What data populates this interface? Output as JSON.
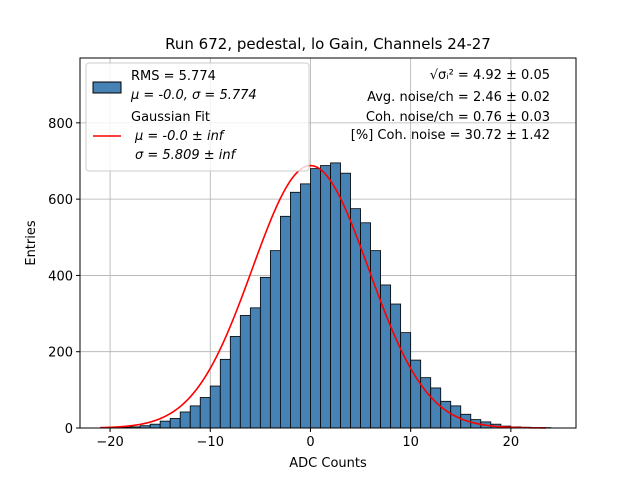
{
  "chart_data": {
    "type": "bar",
    "title": "Run 672, pedestal, lo Gain, Channels 24-27",
    "xlabel": "ADC Counts",
    "ylabel": "Entries",
    "xlim": [
      -23,
      26.5
    ],
    "ylim": [
      0,
      970
    ],
    "xticks": [
      -20,
      -10,
      0,
      10,
      20
    ],
    "xtick_labels": [
      "−20",
      "−10",
      "0",
      "10",
      "20"
    ],
    "yticks": [
      0,
      200,
      400,
      600,
      800
    ],
    "ytick_labels": [
      "0",
      "200",
      "400",
      "600",
      "800"
    ],
    "grid": true,
    "bar_color": "#4682b4",
    "fit_color": "#ff0000",
    "bin_width": 1,
    "bin_left_edges": [
      -20,
      -19,
      -18,
      -17,
      -16,
      -15,
      -14,
      -13,
      -12,
      -11,
      -10,
      -9,
      -8,
      -7,
      -6,
      -5,
      -4,
      -3,
      -2,
      -1,
      0,
      1,
      2,
      3,
      4,
      5,
      6,
      7,
      8,
      9,
      10,
      11,
      12,
      13,
      14,
      15,
      16,
      17,
      18,
      19,
      20,
      21,
      22,
      23
    ],
    "values": [
      1,
      2,
      3,
      6,
      10,
      18,
      25,
      42,
      58,
      80,
      110,
      180,
      240,
      295,
      315,
      395,
      465,
      555,
      618,
      640,
      680,
      688,
      695,
      668,
      575,
      538,
      465,
      375,
      325,
      250,
      178,
      132,
      105,
      70,
      58,
      36,
      22,
      16,
      10,
      5,
      3,
      2,
      1,
      1
    ],
    "fit": {
      "name": "Gaussian Fit",
      "mu": -0.0,
      "sigma": 5.809,
      "peak": 688,
      "x_range": [
        -21,
        23.5
      ]
    },
    "legend": {
      "position": "top-left",
      "hist_entry": [
        "RMS = 5.774",
        "μ = -0.0, σ = 5.774"
      ],
      "fit_entry": [
        "Gaussian Fit",
        "μ = -0.0 ± inf",
        "σ = 5.809 ± inf"
      ]
    },
    "annotations": [
      "√σᵢ² = 4.92 ± 0.05",
      "Avg. noise/ch = 2.46 ± 0.02",
      "Coh. noise/ch = 0.76 ± 0.03",
      "[%] Coh. noise = 30.72 ± 1.42"
    ]
  }
}
